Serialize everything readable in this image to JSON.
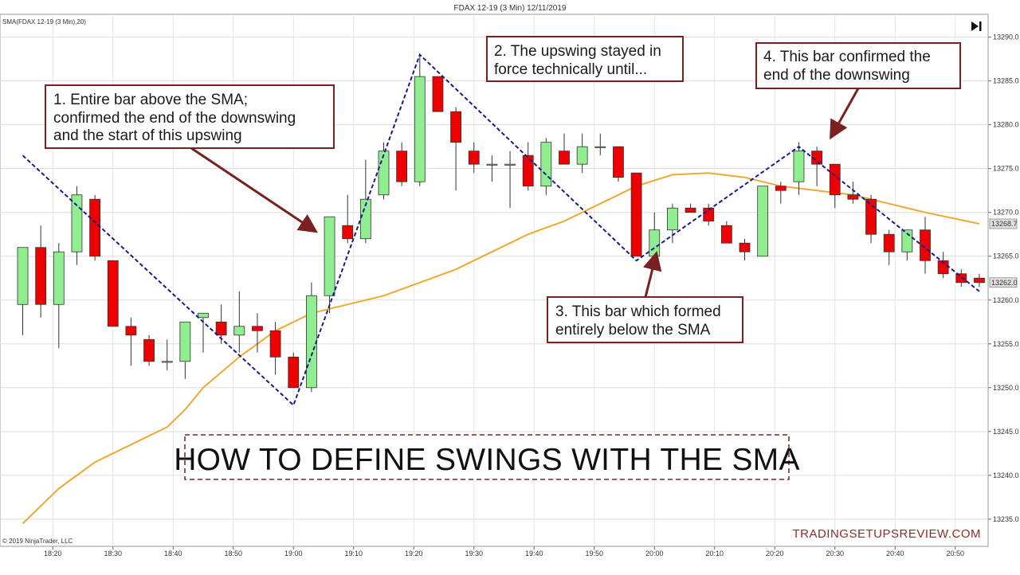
{
  "header": {
    "title": "FDAX 12-19 (3 Min)  12/11/2019",
    "indicator_label": "SMA(FDAX 12-19 (3 Min),20)",
    "copyright": "© 2019 NinjaTrader, LLC",
    "watermark": "TRADINGSETUPSREVIEW.COM",
    "play_icon": "skip-to-end-icon"
  },
  "chart_data": {
    "type": "candlestick",
    "y_ticks": [
      "13290.0",
      "13285.0",
      "13280.0",
      "13275.0",
      "13270.0",
      "13265.0",
      "13260.0",
      "13255.0",
      "13250.0",
      "13245.0",
      "13240.0",
      "13235.0"
    ],
    "y_tick_values": [
      13290,
      13285,
      13280,
      13275,
      13270,
      13265,
      13260,
      13255,
      13250,
      13245,
      13240,
      13235
    ],
    "ylim": [
      13231.9,
      13292.6
    ],
    "x_ticks": [
      "18:20",
      "18:30",
      "18:40",
      "18:50",
      "19:00",
      "19:10",
      "19:20",
      "19:30",
      "19:40",
      "19:50",
      "20:00",
      "20:10",
      "20:20",
      "20:30",
      "20:40",
      "20:50"
    ],
    "time_start": "18:15",
    "bar_minutes": 3,
    "last_sma": "13268.7",
    "last_close": "13262.0",
    "colors": {
      "up": "#90ee90",
      "down": "#ee0000",
      "sma": "#f0a830",
      "swing": "#1a1a8c",
      "annotation": "#7a2020",
      "price_box": "#e0e0e0"
    },
    "candles": [
      {
        "o": 13259.5,
        "h": 13266,
        "l": 13256,
        "c": 13266
      },
      {
        "o": 13266,
        "h": 13268.5,
        "l": 13258,
        "c": 13259.5
      },
      {
        "o": 13259.5,
        "h": 13266.5,
        "l": 13254.5,
        "c": 13265.5
      },
      {
        "o": 13265.5,
        "h": 13273,
        "l": 13264,
        "c": 13272
      },
      {
        "o": 13271.5,
        "h": 13272,
        "l": 13264.5,
        "c": 13265
      },
      {
        "o": 13264.5,
        "h": 13264.5,
        "l": 13257,
        "c": 13257
      },
      {
        "o": 13257,
        "h": 13258,
        "l": 13252.5,
        "c": 13256
      },
      {
        "o": 13255.5,
        "h": 13256,
        "l": 13252.5,
        "c": 13253
      },
      {
        "o": 13253,
        "h": 13255.5,
        "l": 13252,
        "c": 13253
      },
      {
        "o": 13253,
        "h": 13257.5,
        "l": 13251,
        "c": 13257.5
      },
      {
        "o": 13258,
        "h": 13258.5,
        "l": 13254,
        "c": 13258.5
      },
      {
        "o": 13257.5,
        "h": 13259.5,
        "l": 13255,
        "c": 13256
      },
      {
        "o": 13256,
        "h": 13261,
        "l": 13254,
        "c": 13257
      },
      {
        "o": 13257,
        "h": 13258.5,
        "l": 13254,
        "c": 13256.5
      },
      {
        "o": 13256.5,
        "h": 13257.5,
        "l": 13251.5,
        "c": 13253.5
      },
      {
        "o": 13253.5,
        "h": 13254,
        "l": 13250,
        "c": 13250
      },
      {
        "o": 13250,
        "h": 13262,
        "l": 13249.5,
        "c": 13260.5
      },
      {
        "o": 13260.5,
        "h": 13269.5,
        "l": 13258.5,
        "c": 13269.5
      },
      {
        "o": 13268.5,
        "h": 13272,
        "l": 13266.5,
        "c": 13267
      },
      {
        "o": 13267,
        "h": 13276,
        "l": 13266.5,
        "c": 13271.5
      },
      {
        "o": 13272,
        "h": 13278,
        "l": 13271.5,
        "c": 13277
      },
      {
        "o": 13277,
        "h": 13278,
        "l": 13273,
        "c": 13273.5
      },
      {
        "o": 13273.5,
        "h": 13288,
        "l": 13273,
        "c": 13285.5
      },
      {
        "o": 13285.5,
        "h": 13285.5,
        "l": 13281.5,
        "c": 13281.5
      },
      {
        "o": 13281.5,
        "h": 13282,
        "l": 13272.5,
        "c": 13278
      },
      {
        "o": 13277,
        "h": 13278,
        "l": 13274.5,
        "c": 13275.5
      },
      {
        "o": 13275.5,
        "h": 13276.5,
        "l": 13273.5,
        "c": 13275.5
      },
      {
        "o": 13275.5,
        "h": 13277,
        "l": 13270.5,
        "c": 13275.5
      },
      {
        "o": 13276.5,
        "h": 13278,
        "l": 13272.5,
        "c": 13273
      },
      {
        "o": 13273,
        "h": 13278.5,
        "l": 13272,
        "c": 13278
      },
      {
        "o": 13277,
        "h": 13279,
        "l": 13276,
        "c": 13275.5
      },
      {
        "o": 13275.5,
        "h": 13279,
        "l": 13274.5,
        "c": 13277.5
      },
      {
        "o": 13277.5,
        "h": 13279,
        "l": 13276.5,
        "c": 13277.5
      },
      {
        "o": 13277.5,
        "h": 13277.5,
        "l": 13273.5,
        "c": 13274
      },
      {
        "o": 13274.5,
        "h": 13274.5,
        "l": 13265,
        "c": 13265
      },
      {
        "o": 13265,
        "h": 13270,
        "l": 13264.5,
        "c": 13268
      },
      {
        "o": 13268,
        "h": 13271,
        "l": 13266.5,
        "c": 13270.5
      },
      {
        "o": 13270.5,
        "h": 13271,
        "l": 13270,
        "c": 13270
      },
      {
        "o": 13270.5,
        "h": 13271,
        "l": 13268.5,
        "c": 13269
      },
      {
        "o": 13268.5,
        "h": 13269,
        "l": 13266.5,
        "c": 13266.5
      },
      {
        "o": 13266.5,
        "h": 13267,
        "l": 13264.5,
        "c": 13265.5
      },
      {
        "o": 13265,
        "h": 13273,
        "l": 13265,
        "c": 13273
      },
      {
        "o": 13273,
        "h": 13273.5,
        "l": 13271,
        "c": 13272.5
      },
      {
        "o": 13273.5,
        "h": 13278,
        "l": 13272,
        "c": 13277
      },
      {
        "o": 13277,
        "h": 13277.5,
        "l": 13273,
        "c": 13275.5
      },
      {
        "o": 13275.5,
        "h": 13275.5,
        "l": 13270.5,
        "c": 13272
      },
      {
        "o": 13272,
        "h": 13273.5,
        "l": 13271,
        "c": 13271.5
      },
      {
        "o": 13271.5,
        "h": 13272,
        "l": 13266.5,
        "c": 13267.5
      },
      {
        "o": 13267.5,
        "h": 13268,
        "l": 13264,
        "c": 13265.5
      },
      {
        "o": 13265.5,
        "h": 13268,
        "l": 13264.5,
        "c": 13268
      },
      {
        "o": 13268,
        "h": 13269.5,
        "l": 13263,
        "c": 13264.5
      },
      {
        "o": 13264.5,
        "h": 13265.5,
        "l": 13262.5,
        "c": 13263
      },
      {
        "o": 13263,
        "h": 13263.5,
        "l": 13261.5,
        "c": 13262
      },
      {
        "o": 13262.5,
        "h": 13263,
        "l": 13261.5,
        "c": 13262
      }
    ],
    "sma_points": [
      {
        "i": 0,
        "v": 13234.5
      },
      {
        "i": 2,
        "v": 13238.5
      },
      {
        "i": 4,
        "v": 13241.5
      },
      {
        "i": 6,
        "v": 13243.5
      },
      {
        "i": 8,
        "v": 13245.5
      },
      {
        "i": 9,
        "v": 13247.5
      },
      {
        "i": 10,
        "v": 13250
      },
      {
        "i": 12,
        "v": 13253.5
      },
      {
        "i": 14,
        "v": 13256.5
      },
      {
        "i": 16,
        "v": 13258.5
      },
      {
        "i": 18,
        "v": 13259.5
      },
      {
        "i": 20,
        "v": 13260.5
      },
      {
        "i": 22,
        "v": 13262
      },
      {
        "i": 24,
        "v": 13263.5
      },
      {
        "i": 26,
        "v": 13265.5
      },
      {
        "i": 28,
        "v": 13267.5
      },
      {
        "i": 30,
        "v": 13269
      },
      {
        "i": 32,
        "v": 13271
      },
      {
        "i": 34,
        "v": 13273
      },
      {
        "i": 36,
        "v": 13274.3
      },
      {
        "i": 38,
        "v": 13274.5
      },
      {
        "i": 40,
        "v": 13274
      },
      {
        "i": 42,
        "v": 13273
      },
      {
        "i": 44,
        "v": 13272.5
      },
      {
        "i": 46,
        "v": 13272
      },
      {
        "i": 48,
        "v": 13271
      },
      {
        "i": 50,
        "v": 13270
      },
      {
        "i": 53,
        "v": 13268.7
      }
    ],
    "swings": [
      {
        "i": 0,
        "v": 13276.5
      },
      {
        "i": 15,
        "v": 13248
      },
      {
        "i": 22,
        "v": 13288
      },
      {
        "i": 34,
        "v": 13264.5
      },
      {
        "i": 43,
        "v": 13277.5
      },
      {
        "i": 53,
        "v": 13261
      }
    ]
  },
  "annotations": [
    {
      "id": "ann-1",
      "lines": [
        "1. Entire bar above the SMA;",
        "confirmed the end of the downswing",
        "and the start of this upswing"
      ]
    },
    {
      "id": "ann-2",
      "lines": [
        "2. The upswing stayed in",
        "force technically until..."
      ]
    },
    {
      "id": "ann-3",
      "lines": [
        "3. This bar which formed",
        "entirely below the SMA"
      ]
    },
    {
      "id": "ann-4",
      "lines": [
        "4. This bar confirmed the",
        "end of the downswing"
      ]
    }
  ],
  "main_title": "HOW TO DEFINE SWINGS WITH THE SMA"
}
